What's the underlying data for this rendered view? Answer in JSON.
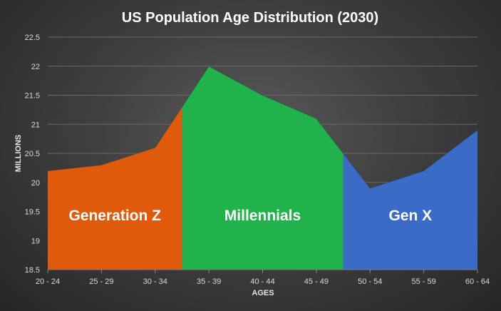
{
  "chart_data": {
    "type": "area",
    "title": "US Population  Age Distribution  (2030)",
    "xlabel": "AGES",
    "ylabel": "MILLIONS",
    "categories": [
      "20 - 24",
      "25 - 29",
      "30 - 34",
      "35 - 39",
      "40 - 44",
      "45 - 49",
      "50 - 54",
      "55 - 59",
      "60 - 64"
    ],
    "values": [
      20.2,
      20.3,
      20.6,
      22.0,
      21.5,
      21.1,
      19.9,
      20.2,
      20.9
    ],
    "ylim": [
      18.5,
      22.5
    ],
    "yticks": [
      "18.5",
      "19",
      "19.5",
      "20",
      "20.5",
      "21",
      "21.5",
      "22",
      "22.5"
    ],
    "grid": true,
    "segments": [
      {
        "name": "Generation Z",
        "from_index": 0,
        "to_index": 2.5,
        "color": "#e05a0c"
      },
      {
        "name": "Millennials",
        "from_index": 2.5,
        "to_index": 5.5,
        "color": "#22b24c"
      },
      {
        "name": "Gen X",
        "from_index": 5.5,
        "to_index": 8,
        "color": "#3a6bc6"
      }
    ]
  }
}
